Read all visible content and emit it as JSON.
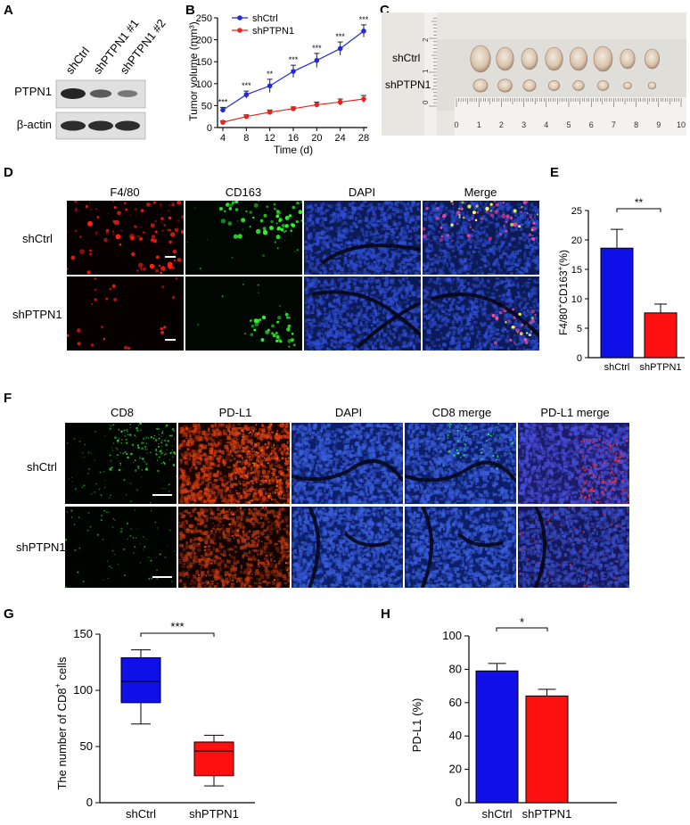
{
  "figure": {
    "panels": {
      "A": "A",
      "B": "B",
      "C": "C",
      "D": "D",
      "E": "E",
      "F": "F",
      "G": "G",
      "H": "H"
    }
  },
  "panel_a": {
    "lanes": [
      "shCtrl",
      "shPTPN1 #1",
      "shPTPN1 #2"
    ],
    "rows": [
      "PTPN1",
      "β-actin"
    ],
    "band_intensity": {
      "PTPN1": [
        1.0,
        0.55,
        0.3
      ],
      "beta_actin": [
        1.0,
        1.0,
        1.0
      ]
    }
  },
  "panel_c": {
    "rows": [
      "shCtrl",
      "shPTPN1"
    ],
    "ruler_h": [
      "0",
      "1",
      "2",
      "3",
      "4",
      "5",
      "6",
      "7",
      "8",
      "9",
      "10"
    ],
    "ruler_v": [
      "0",
      "1",
      "2"
    ]
  },
  "panel_d": {
    "columns": [
      "F4/80",
      "CD163",
      "DAPI",
      "Merge"
    ],
    "rows": [
      "shCtrl",
      "shPTPN1"
    ]
  },
  "panel_f": {
    "columns": [
      "CD8",
      "PD-L1",
      "DAPI",
      "CD8 merge",
      "PD-L1 merge"
    ],
    "rows": [
      "shCtrl",
      "shPTPN1"
    ]
  },
  "chart_data": [
    {
      "panel": "B",
      "type": "line",
      "xlabel": "Time (d)",
      "ylabel": "Tumor volume (mm³)",
      "x": [
        4,
        8,
        12,
        16,
        20,
        24,
        28
      ],
      "xlim": [
        4,
        28
      ],
      "ylim": [
        0,
        250
      ],
      "yticks": [
        0,
        50,
        100,
        150,
        200,
        250
      ],
      "series": [
        {
          "name": "shCtrl",
          "color": "#1f2bd8",
          "values": [
            40,
            75,
            95,
            128,
            153,
            180,
            220
          ],
          "errors": [
            6,
            8,
            15,
            14,
            16,
            15,
            14
          ]
        },
        {
          "name": "shPTPN1",
          "color": "#e8231d",
          "values": [
            12,
            25,
            35,
            43,
            52,
            58,
            65
          ],
          "errors": [
            3,
            4,
            5,
            4,
            6,
            7,
            8
          ]
        }
      ],
      "annotations": [
        "***",
        "***",
        "**",
        "***",
        "***",
        "***",
        "***"
      ],
      "legend": "top-left"
    },
    {
      "panel": "E",
      "type": "bar",
      "categories": [
        "shCtrl",
        "shPTPN1"
      ],
      "values": [
        18.6,
        7.6
      ],
      "errors": [
        3.2,
        1.5
      ],
      "colors": [
        "#1010e8",
        "#ff1010"
      ],
      "ylabel_main": "F4/80",
      "ylabel_sup1": "+",
      "ylabel_mid": "CD163",
      "ylabel_sup2": "+",
      "ylabel_end": "(%)",
      "ylim": [
        0,
        25
      ],
      "yticks": [
        0,
        5,
        10,
        15,
        20,
        25
      ],
      "significance": "**"
    },
    {
      "panel": "G",
      "type": "box",
      "categories": [
        "shCtrl",
        "shPTPN1"
      ],
      "boxes": [
        {
          "min": 70,
          "q1": 89,
          "median": 108,
          "q3": 129,
          "max": 136
        },
        {
          "min": 15,
          "q1": 24,
          "median": 46,
          "q3": 54,
          "max": 60
        }
      ],
      "colors": [
        "#1010e8",
        "#ff1010"
      ],
      "ylabel_main": "The number of CD8",
      "ylabel_sup": "+",
      "ylabel_end": " cells",
      "ylim": [
        0,
        150
      ],
      "yticks": [
        0,
        50,
        100,
        150
      ],
      "significance": "***"
    },
    {
      "panel": "H",
      "type": "bar",
      "categories": [
        "shCtrl",
        "shPTPN1"
      ],
      "values": [
        79,
        64
      ],
      "errors": [
        4.5,
        4
      ],
      "colors": [
        "#1010e8",
        "#ff1010"
      ],
      "ylabel": "PD-L1 (%)",
      "ylim": [
        0,
        100
      ],
      "yticks": [
        0,
        20,
        40,
        60,
        80,
        100
      ],
      "significance": "*"
    }
  ]
}
